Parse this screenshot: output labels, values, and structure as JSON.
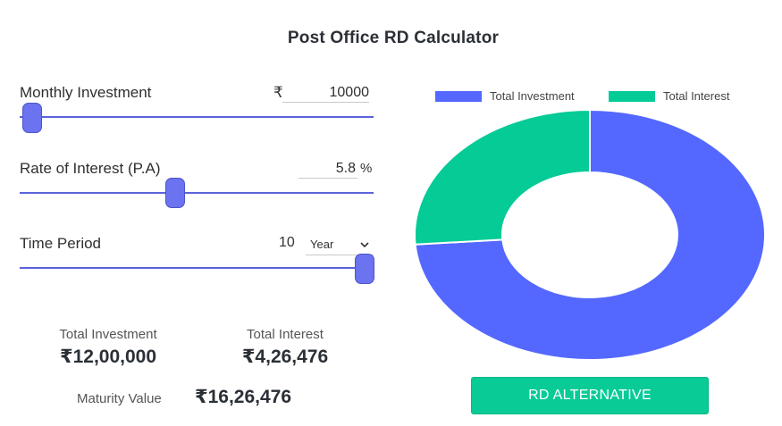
{
  "title": "Post Office RD Calculator",
  "monthly_investment": {
    "label": "Monthly Investment",
    "currency_symbol": "₹",
    "value": "10000",
    "slider_fraction": 0.03
  },
  "rate_of_interest": {
    "label": "Rate of Interest (P.A)",
    "value": "5.8",
    "unit": "%",
    "slider_fraction": 0.44
  },
  "time_period": {
    "label": "Time Period",
    "value": "10",
    "unit_selected": "Year",
    "slider_fraction": 1.0
  },
  "summary": {
    "total_investment_label": "Total Investment",
    "total_investment_value": "₹12,00,000",
    "total_interest_label": "Total Interest",
    "total_interest_value": "₹4,26,476",
    "maturity_label": "Maturity Value",
    "maturity_value": "₹16,26,476"
  },
  "chart_data": {
    "type": "pie",
    "categories": [
      "Total Investment",
      "Total Interest"
    ],
    "values": [
      1200000,
      426476
    ],
    "colors": [
      "#5468ff",
      "#05cb96"
    ],
    "legend_position": "top"
  },
  "rd_alternative_button": {
    "label": "RD ALTERNATIVE"
  },
  "icons": {
    "dropdown": "chevron-down-icon"
  }
}
